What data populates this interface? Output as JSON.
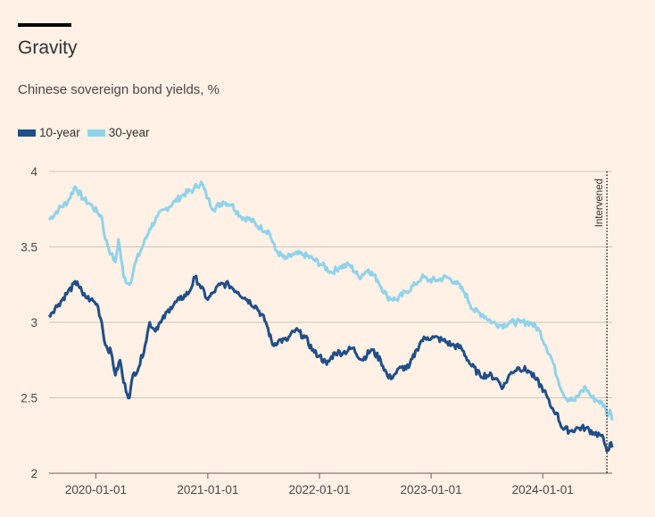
{
  "header": {
    "title": "Gravity",
    "subtitle": "Chinese sovereign bond yields, %"
  },
  "legend": [
    {
      "label": "10-year",
      "color": "#1F4E89"
    },
    {
      "label": "30-year",
      "color": "#8FD3EB"
    }
  ],
  "chart_data": {
    "type": "line",
    "title": "Gravity",
    "subtitle": "Chinese sovereign bond yields, %",
    "xlabel": "",
    "ylabel": "",
    "ylim": [
      2,
      4
    ],
    "xlim": [
      "2019-08-01",
      "2024-08-15"
    ],
    "yticks": [
      2,
      2.5,
      3,
      3.5,
      4
    ],
    "yticklabels": [
      "2",
      "2.5",
      "3",
      "3.5",
      "4"
    ],
    "xticks": [
      "2020-01-01",
      "2021-01-01",
      "2022-01-01",
      "2023-01-01",
      "2024-01-01"
    ],
    "grid": true,
    "legend_position": "top-left",
    "annotations": [
      {
        "text": "Intervened",
        "x": "2024-07-29",
        "style": "vertical dotted line"
      }
    ],
    "series": [
      {
        "name": "10-year",
        "color": "#1F4E89",
        "points": [
          [
            "2019-08-01",
            3.05
          ],
          [
            "2019-09-01",
            3.12
          ],
          [
            "2019-10-01",
            3.2
          ],
          [
            "2019-11-01",
            3.27
          ],
          [
            "2019-11-20",
            3.18
          ],
          [
            "2019-12-15",
            3.15
          ],
          [
            "2020-01-05",
            3.12
          ],
          [
            "2020-01-20",
            3.0
          ],
          [
            "2020-02-01",
            2.85
          ],
          [
            "2020-02-20",
            2.8
          ],
          [
            "2020-03-05",
            2.65
          ],
          [
            "2020-03-20",
            2.75
          ],
          [
            "2020-04-01",
            2.6
          ],
          [
            "2020-04-20",
            2.5
          ],
          [
            "2020-05-01",
            2.65
          ],
          [
            "2020-05-20",
            2.7
          ],
          [
            "2020-06-10",
            2.85
          ],
          [
            "2020-06-25",
            3.0
          ],
          [
            "2020-07-10",
            2.95
          ],
          [
            "2020-08-01",
            3.0
          ],
          [
            "2020-09-01",
            3.1
          ],
          [
            "2020-10-01",
            3.15
          ],
          [
            "2020-11-01",
            3.2
          ],
          [
            "2020-11-20",
            3.3
          ],
          [
            "2020-12-05",
            3.25
          ],
          [
            "2021-01-01",
            3.15
          ],
          [
            "2021-01-20",
            3.2
          ],
          [
            "2021-02-10",
            3.25
          ],
          [
            "2021-03-10",
            3.25
          ],
          [
            "2021-04-10",
            3.2
          ],
          [
            "2021-05-10",
            3.15
          ],
          [
            "2021-06-10",
            3.1
          ],
          [
            "2021-07-10",
            3.0
          ],
          [
            "2021-08-01",
            2.85
          ],
          [
            "2021-08-20",
            2.88
          ],
          [
            "2021-09-15",
            2.88
          ],
          [
            "2021-10-15",
            2.95
          ],
          [
            "2021-11-15",
            2.9
          ],
          [
            "2021-12-15",
            2.8
          ],
          [
            "2022-01-01",
            2.78
          ],
          [
            "2022-01-25",
            2.72
          ],
          [
            "2022-02-20",
            2.8
          ],
          [
            "2022-03-20",
            2.8
          ],
          [
            "2022-04-20",
            2.83
          ],
          [
            "2022-05-20",
            2.75
          ],
          [
            "2022-06-20",
            2.82
          ],
          [
            "2022-07-20",
            2.75
          ],
          [
            "2022-08-15",
            2.63
          ],
          [
            "2022-09-01",
            2.65
          ],
          [
            "2022-09-25",
            2.7
          ],
          [
            "2022-10-20",
            2.7
          ],
          [
            "2022-11-15",
            2.82
          ],
          [
            "2022-12-01",
            2.88
          ],
          [
            "2022-12-20",
            2.9
          ],
          [
            "2023-01-10",
            2.9
          ],
          [
            "2023-02-10",
            2.88
          ],
          [
            "2023-03-10",
            2.85
          ],
          [
            "2023-04-10",
            2.83
          ],
          [
            "2023-05-10",
            2.72
          ],
          [
            "2023-06-10",
            2.65
          ],
          [
            "2023-07-10",
            2.65
          ],
          [
            "2023-08-01",
            2.63
          ],
          [
            "2023-08-25",
            2.57
          ],
          [
            "2023-09-20",
            2.67
          ],
          [
            "2023-10-15",
            2.7
          ],
          [
            "2023-11-15",
            2.68
          ],
          [
            "2023-12-10",
            2.62
          ],
          [
            "2024-01-05",
            2.55
          ],
          [
            "2024-01-25",
            2.45
          ],
          [
            "2024-02-15",
            2.4
          ],
          [
            "2024-03-05",
            2.3
          ],
          [
            "2024-04-01",
            2.28
          ],
          [
            "2024-04-25",
            2.3
          ],
          [
            "2024-05-20",
            2.3
          ],
          [
            "2024-06-15",
            2.27
          ],
          [
            "2024-07-10",
            2.25
          ],
          [
            "2024-07-25",
            2.18
          ],
          [
            "2024-08-01",
            2.15
          ],
          [
            "2024-08-08",
            2.2
          ],
          [
            "2024-08-15",
            2.17
          ]
        ]
      },
      {
        "name": "30-year",
        "color": "#8FD3EB",
        "points": [
          [
            "2019-08-01",
            3.68
          ],
          [
            "2019-09-01",
            3.75
          ],
          [
            "2019-10-01",
            3.8
          ],
          [
            "2019-10-25",
            3.9
          ],
          [
            "2019-11-20",
            3.82
          ],
          [
            "2019-12-15",
            3.78
          ],
          [
            "2020-01-05",
            3.73
          ],
          [
            "2020-01-20",
            3.7
          ],
          [
            "2020-02-01",
            3.55
          ],
          [
            "2020-02-20",
            3.45
          ],
          [
            "2020-03-05",
            3.4
          ],
          [
            "2020-03-15",
            3.55
          ],
          [
            "2020-04-01",
            3.3
          ],
          [
            "2020-04-20",
            3.25
          ],
          [
            "2020-05-10",
            3.4
          ],
          [
            "2020-06-01",
            3.5
          ],
          [
            "2020-06-25",
            3.62
          ],
          [
            "2020-07-20",
            3.7
          ],
          [
            "2020-08-15",
            3.75
          ],
          [
            "2020-09-15",
            3.8
          ],
          [
            "2020-10-15",
            3.85
          ],
          [
            "2020-11-15",
            3.88
          ],
          [
            "2020-12-10",
            3.93
          ],
          [
            "2021-01-01",
            3.82
          ],
          [
            "2021-01-20",
            3.75
          ],
          [
            "2021-02-20",
            3.8
          ],
          [
            "2021-03-20",
            3.78
          ],
          [
            "2021-04-20",
            3.7
          ],
          [
            "2021-05-20",
            3.68
          ],
          [
            "2021-06-20",
            3.63
          ],
          [
            "2021-07-20",
            3.6
          ],
          [
            "2021-08-10",
            3.48
          ],
          [
            "2021-09-10",
            3.42
          ],
          [
            "2021-10-10",
            3.45
          ],
          [
            "2021-11-10",
            3.45
          ],
          [
            "2021-12-10",
            3.42
          ],
          [
            "2022-01-10",
            3.38
          ],
          [
            "2022-02-10",
            3.33
          ],
          [
            "2022-03-10",
            3.37
          ],
          [
            "2022-04-10",
            3.38
          ],
          [
            "2022-05-10",
            3.3
          ],
          [
            "2022-06-10",
            3.35
          ],
          [
            "2022-07-10",
            3.28
          ],
          [
            "2022-08-10",
            3.17
          ],
          [
            "2022-09-10",
            3.15
          ],
          [
            "2022-10-10",
            3.2
          ],
          [
            "2022-11-10",
            3.25
          ],
          [
            "2022-12-01",
            3.3
          ],
          [
            "2022-12-25",
            3.28
          ],
          [
            "2023-01-20",
            3.28
          ],
          [
            "2023-02-20",
            3.3
          ],
          [
            "2023-03-20",
            3.27
          ],
          [
            "2023-04-20",
            3.2
          ],
          [
            "2023-05-20",
            3.08
          ],
          [
            "2023-06-20",
            3.05
          ],
          [
            "2023-07-20",
            3.0
          ],
          [
            "2023-08-20",
            2.98
          ],
          [
            "2023-09-20",
            3.0
          ],
          [
            "2023-10-20",
            3.0
          ],
          [
            "2023-11-20",
            3.0
          ],
          [
            "2023-12-20",
            2.95
          ],
          [
            "2024-01-10",
            2.85
          ],
          [
            "2024-02-01",
            2.75
          ],
          [
            "2024-02-20",
            2.62
          ],
          [
            "2024-03-15",
            2.5
          ],
          [
            "2024-04-15",
            2.48
          ],
          [
            "2024-05-01",
            2.53
          ],
          [
            "2024-05-20",
            2.57
          ],
          [
            "2024-06-10",
            2.5
          ],
          [
            "2024-07-01",
            2.48
          ],
          [
            "2024-07-20",
            2.45
          ],
          [
            "2024-08-01",
            2.38
          ],
          [
            "2024-08-08",
            2.42
          ],
          [
            "2024-08-15",
            2.35
          ]
        ]
      }
    ]
  }
}
